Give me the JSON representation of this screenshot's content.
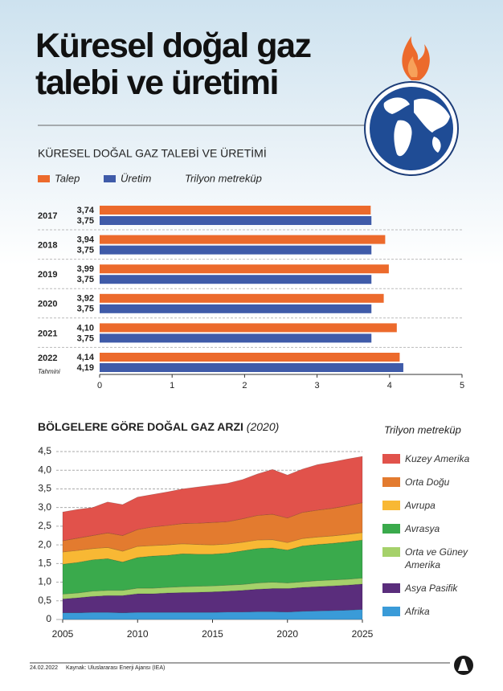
{
  "header": {
    "title_lines": [
      "Küresel doğal gaz",
      "talebi ve üretimi"
    ]
  },
  "chart_data": [
    {
      "type": "hbar",
      "title": "KÜRESEL DOĞAL GAZ TALEBİ VE ÜRETİMİ",
      "unit": "Trilyon metreküp",
      "categories": [
        "2017",
        "2018",
        "2019",
        "2020",
        "2021",
        "2022"
      ],
      "category_notes": [
        null,
        null,
        null,
        null,
        null,
        "Tahmini"
      ],
      "series": [
        {
          "name": "Talep",
          "color": "#ec6a2c",
          "values": [
            3.74,
            3.94,
            3.99,
            3.92,
            4.1,
            4.14
          ],
          "value_labels": [
            "3,74",
            "3,94",
            "3,99",
            "3,92",
            "4,10",
            "4,14"
          ]
        },
        {
          "name": "Üretim",
          "color": "#3f5ba9",
          "values": [
            3.75,
            3.75,
            3.75,
            3.75,
            3.75,
            4.19
          ],
          "value_labels": [
            "3,75",
            "3,75",
            "3,75",
            "3,75",
            "3,75",
            "4,19"
          ]
        }
      ],
      "xlim": [
        0,
        5
      ],
      "xticks": [
        0,
        1,
        2,
        3,
        4,
        5
      ],
      "grid": true
    },
    {
      "type": "stacked_area",
      "title": "BÖLGELERE GÖRE DOĞAL GAZ ARZI",
      "subtitle": "(2020)",
      "unit": "Trilyon metreküp",
      "x": [
        2005,
        2006,
        2007,
        2008,
        2009,
        2010,
        2011,
        2012,
        2013,
        2014,
        2015,
        2016,
        2017,
        2018,
        2019,
        2020,
        2021,
        2022,
        2023,
        2024,
        2025
      ],
      "series": [
        {
          "name": "Afrika",
          "color": "#3a9bd8",
          "values": [
            0.18,
            0.18,
            0.19,
            0.19,
            0.18,
            0.19,
            0.19,
            0.19,
            0.19,
            0.19,
            0.19,
            0.2,
            0.2,
            0.21,
            0.21,
            0.2,
            0.22,
            0.23,
            0.24,
            0.25,
            0.27
          ]
        },
        {
          "name": "Asya Pasifik",
          "color": "#5a2d7c",
          "values": [
            0.37,
            0.4,
            0.43,
            0.45,
            0.46,
            0.5,
            0.5,
            0.52,
            0.53,
            0.54,
            0.55,
            0.56,
            0.58,
            0.6,
            0.62,
            0.63,
            0.64,
            0.65,
            0.66,
            0.67,
            0.68
          ]
        },
        {
          "name": "Orta ve Güney Amerika",
          "color": "#a5d16a",
          "values": [
            0.13,
            0.13,
            0.14,
            0.14,
            0.14,
            0.15,
            0.15,
            0.15,
            0.16,
            0.16,
            0.16,
            0.16,
            0.16,
            0.17,
            0.17,
            0.15,
            0.15,
            0.16,
            0.16,
            0.16,
            0.16
          ]
        },
        {
          "name": "Avrasya",
          "color": "#3aaa4c",
          "values": [
            0.8,
            0.82,
            0.84,
            0.85,
            0.76,
            0.82,
            0.86,
            0.86,
            0.88,
            0.86,
            0.85,
            0.86,
            0.9,
            0.92,
            0.92,
            0.88,
            0.96,
            0.97,
            0.98,
            1.0,
            1.02
          ]
        },
        {
          "name": "Avrupa",
          "color": "#f8b834",
          "values": [
            0.33,
            0.32,
            0.3,
            0.3,
            0.29,
            0.3,
            0.28,
            0.28,
            0.27,
            0.26,
            0.25,
            0.24,
            0.23,
            0.23,
            0.22,
            0.2,
            0.2,
            0.2,
            0.2,
            0.2,
            0.2
          ]
        },
        {
          "name": "Orta Doğu",
          "color": "#e37b2f",
          "values": [
            0.3,
            0.33,
            0.35,
            0.39,
            0.42,
            0.45,
            0.5,
            0.52,
            0.54,
            0.57,
            0.6,
            0.6,
            0.63,
            0.66,
            0.68,
            0.66,
            0.7,
            0.72,
            0.74,
            0.77,
            0.8
          ]
        },
        {
          "name": "Kuzey Amerika",
          "color": "#e1524b",
          "values": [
            0.77,
            0.77,
            0.75,
            0.83,
            0.83,
            0.87,
            0.87,
            0.9,
            0.93,
            0.97,
            1.0,
            1.03,
            1.05,
            1.11,
            1.2,
            1.15,
            1.16,
            1.22,
            1.24,
            1.25,
            1.24
          ]
        }
      ],
      "xlim": [
        2005,
        2025
      ],
      "xticks": [
        2005,
        2010,
        2015,
        2020,
        2025
      ],
      "ylim": [
        0,
        4.5
      ],
      "yticks": [
        0,
        {
          "value": 0.5,
          "label": "0,5"
        },
        {
          "value": 1.0,
          "label": "1,0"
        },
        {
          "value": 1.5,
          "label": "1,5"
        },
        {
          "value": 2.0,
          "label": "2,0"
        },
        {
          "value": 2.5,
          "label": "2,5"
        },
        {
          "value": 3.0,
          "label": "3,0"
        },
        {
          "value": 3.5,
          "label": "3,5"
        },
        {
          "value": 4.0,
          "label": "4,0"
        },
        {
          "value": 4.5,
          "label": "4,5"
        }
      ],
      "grid": true
    }
  ],
  "footer": {
    "date": "24.02.2022",
    "source": "Kaynak: Uluslararası Enerji Ajansı (IEA)"
  }
}
